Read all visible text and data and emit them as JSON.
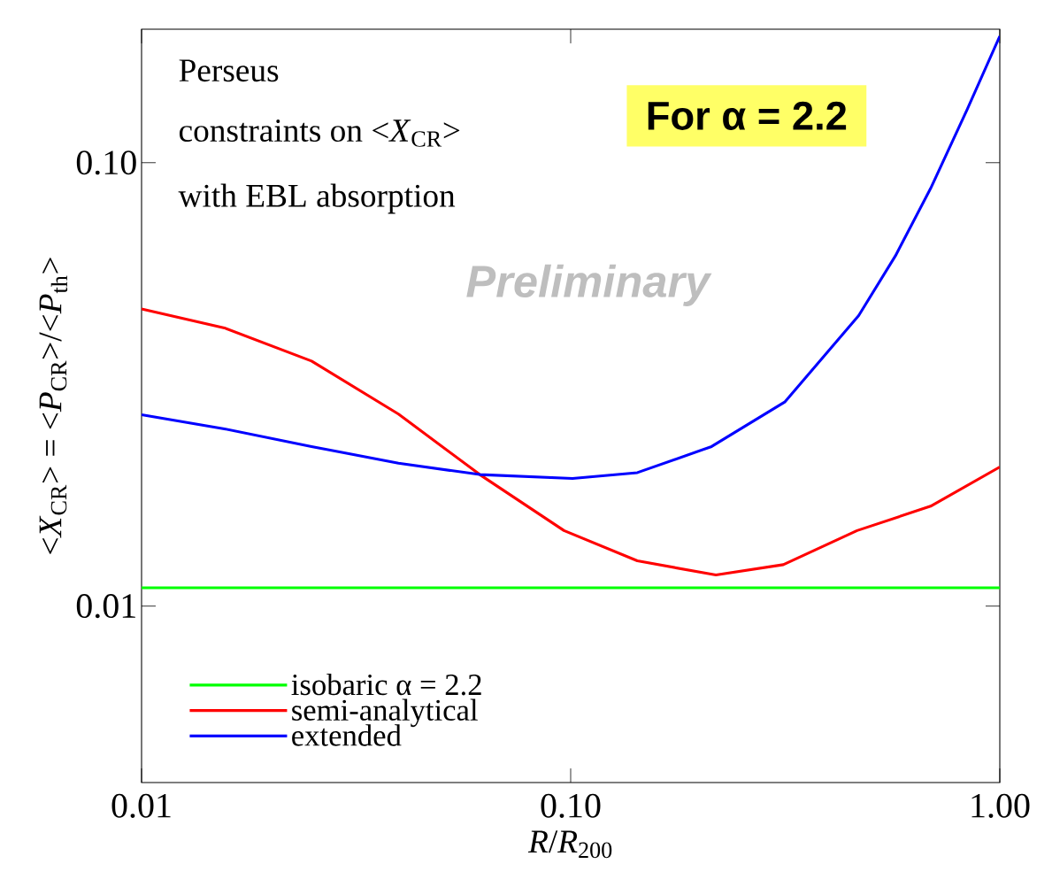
{
  "chart_data": {
    "type": "line",
    "xlabel": "*R*/*R*$_{200}$",
    "ylabel": "<*X*$_{CR}$> = <*P*$_{CR}$>/<*P*$_{th}$>",
    "annotations": [
      "Perseus",
      "constraints on <*X*$_{CR}$>",
      "with EBL absorption",
      "For α = 2.2",
      "Preliminary"
    ],
    "log": "xy",
    "xlim": [
      0.01,
      1.0
    ],
    "ylim": [
      0.004,
      0.2
    ],
    "xticks": [
      0.01,
      {
        "value": 0.1,
        "label": "0.10"
      },
      {
        "value": 1.0,
        "label": "1.00"
      }
    ],
    "yticks": [
      0.01,
      {
        "value": 0.1,
        "label": "0.10"
      }
    ],
    "legend": "bottom left",
    "series": [
      {
        "name": "isobaric α = 2.2",
        "color": "#00ff00",
        "x": [
          0.01,
          1.0
        ],
        "values": [
          0.011,
          0.011
        ]
      },
      {
        "name": "semi-analytical",
        "color": "#ff0000",
        "x": [
          0.01,
          0.0156,
          0.0249,
          0.0397,
          0.0614,
          0.0965,
          0.143,
          0.218,
          0.313,
          0.465,
          0.69,
          1.0
        ],
        "values": [
          0.0468,
          0.0424,
          0.0357,
          0.0271,
          0.0198,
          0.0148,
          0.01265,
          0.01175,
          0.0124,
          0.0148,
          0.0168,
          0.0206
        ]
      },
      {
        "name": "extended",
        "color": "#0000ff",
        "x": [
          0.01,
          0.0156,
          0.0249,
          0.0397,
          0.0614,
          0.101,
          0.143,
          0.213,
          0.316,
          0.469,
          0.571,
          0.69,
          0.84,
          1.0
        ],
        "values": [
          0.027,
          0.0251,
          0.0229,
          0.021,
          0.0198,
          0.0194,
          0.02,
          0.0229,
          0.0289,
          0.0452,
          0.0616,
          0.0875,
          0.132,
          0.193
        ]
      }
    ]
  }
}
